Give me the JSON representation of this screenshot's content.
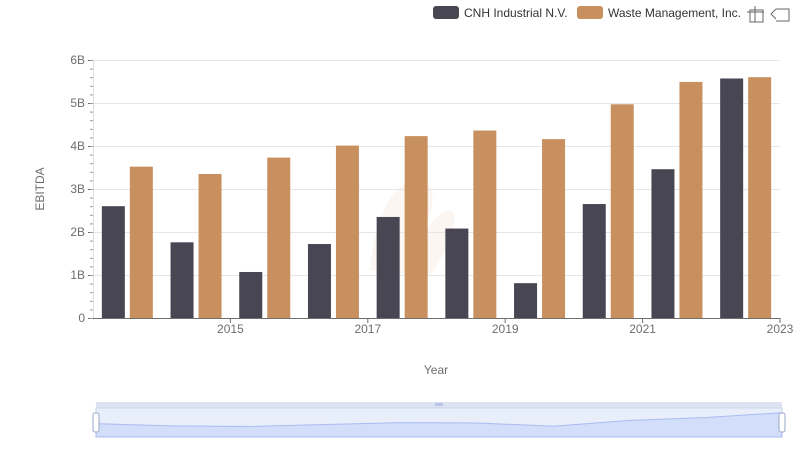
{
  "chart_data": {
    "type": "bar",
    "xlabel": "Year",
    "ylabel": "EBITDA",
    "categories": [
      "2014",
      "2015",
      "2016",
      "2017",
      "2018",
      "2019",
      "2020",
      "2021",
      "2022",
      "2023"
    ],
    "x_tick_labels": [
      "2015",
      "2017",
      "2019",
      "2021",
      "2023"
    ],
    "y_tick_labels": [
      "0",
      "1B",
      "2B",
      "3B",
      "4B",
      "5B",
      "6B"
    ],
    "ylim": [
      0,
      6000000000
    ],
    "grid": true,
    "legend_position": "top-right",
    "series": [
      {
        "name": "CNH Industrial N.V.",
        "color": "#474652",
        "values": [
          2600000000,
          1760000000,
          1070000000,
          1720000000,
          2350000000,
          2080000000,
          810000000,
          2650000000,
          3460000000,
          5570000000
        ]
      },
      {
        "name": "Waste Management, Inc.",
        "color": "#c8905e",
        "values": [
          3520000000,
          3350000000,
          3730000000,
          4010000000,
          4230000000,
          4360000000,
          4160000000,
          4970000000,
          5490000000,
          5600000000
        ]
      }
    ]
  },
  "toolbar": {
    "zoom_icon": "zoom-crosshair-icon",
    "restore_icon": "restore-arrow-icon"
  },
  "datazoom": {
    "fill_color": "#dde6fb",
    "border_color": "#c9d3ec"
  }
}
